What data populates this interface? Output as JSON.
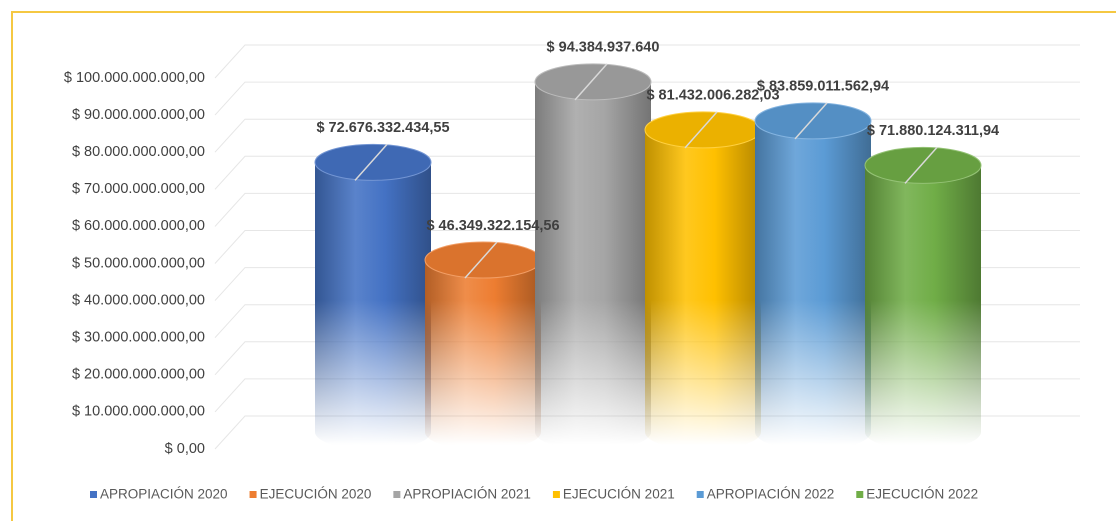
{
  "chart_data": {
    "type": "bar",
    "series": [
      {
        "name": "APROPIACIÓN 2020",
        "color": "#4472c4",
        "values": [
          72676332434.55
        ],
        "value_labels": [
          "$ 72.676.332.434,55"
        ]
      },
      {
        "name": "EJECUCIÓN 2020",
        "color": "#ed7d31",
        "values": [
          46349322154.56
        ],
        "value_labels": [
          "$ 46.349.322.154,56"
        ]
      },
      {
        "name": "APROPIACIÓN 2021",
        "color": "#a5a5a5",
        "values": [
          94384937640
        ],
        "value_labels": [
          "$ 94.384.937.640"
        ]
      },
      {
        "name": "EJECUCIÓN 2021",
        "color": "#ffc000",
        "values": [
          81432006282.03
        ],
        "value_labels": [
          "$ 81.432.006.282,03"
        ]
      },
      {
        "name": "APROPIACIÓN 2022",
        "color": "#5b9bd5",
        "values": [
          83859011562.94
        ],
        "value_labels": [
          "$ 83.859.011.562,94"
        ]
      },
      {
        "name": "EJECUCIÓN 2022",
        "color": "#70ad47",
        "values": [
          71880124311.94
        ],
        "value_labels": [
          "$ 71.880.124.311,94"
        ]
      }
    ],
    "ylim": [
      0,
      100000000000
    ],
    "yticks": [
      {
        "value": 0,
        "label": "$ 0,00"
      },
      {
        "value": 10000000000,
        "label": "$ 10.000.000.000,00"
      },
      {
        "value": 20000000000,
        "label": "$ 20.000.000.000,00"
      },
      {
        "value": 30000000000,
        "label": "$ 30.000.000.000,00"
      },
      {
        "value": 40000000000,
        "label": "$ 40.000.000.000,00"
      },
      {
        "value": 50000000000,
        "label": "$ 50.000.000.000,00"
      },
      {
        "value": 60000000000,
        "label": "$ 60.000.000.000,00"
      },
      {
        "value": 70000000000,
        "label": "$ 70.000.000.000,00"
      },
      {
        "value": 80000000000,
        "label": "$ 80.000.000.000,00"
      },
      {
        "value": 90000000000,
        "label": "$ 90.000.000.000,00"
      },
      {
        "value": 100000000000,
        "label": "$ 100.000.000.000,00"
      }
    ],
    "grid": true,
    "legend": "bottom"
  }
}
